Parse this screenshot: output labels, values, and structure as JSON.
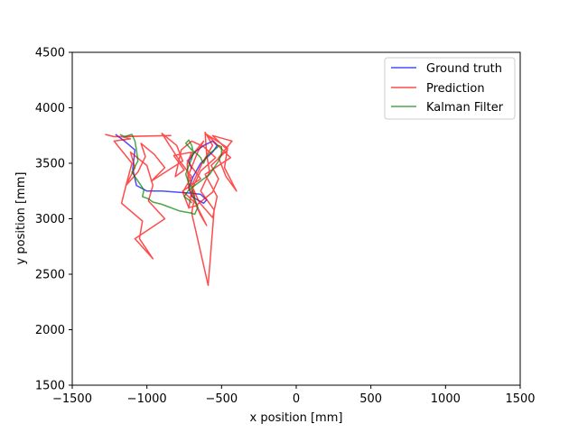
{
  "chart_data": {
    "type": "line",
    "xlabel": "x position [mm]",
    "ylabel": "y position [mm]",
    "xlim": [
      -1500,
      1500
    ],
    "ylim": [
      1500,
      4500
    ],
    "xticks": [
      -1500,
      -1000,
      -500,
      0,
      500,
      1000,
      1500
    ],
    "yticks": [
      1500,
      2000,
      2500,
      3000,
      3500,
      4000,
      4500
    ],
    "xtick_labels": [
      "−1500",
      "−1000",
      "−500",
      "0",
      "500",
      "1000",
      "1500"
    ],
    "ytick_labels": [
      "1500",
      "2000",
      "2500",
      "3000",
      "3500",
      "4000",
      "4500"
    ],
    "grid": false,
    "legend_position": "top-right",
    "series": [
      {
        "name": "Ground truth",
        "color": "#0000ff",
        "x": [
          -1210,
          -1150,
          -1080,
          -1095,
          -1070,
          -1000,
          -900,
          -800,
          -700,
          -640,
          -600,
          -620,
          -700,
          -720,
          -690,
          -640,
          -560,
          -530,
          -560,
          -620,
          -680,
          -720,
          -700
        ],
        "y": [
          3760,
          3700,
          3620,
          3450,
          3300,
          3250,
          3250,
          3240,
          3230,
          3220,
          3170,
          3140,
          3200,
          3280,
          3380,
          3500,
          3600,
          3660,
          3700,
          3660,
          3600,
          3520,
          3450
        ]
      },
      {
        "name": "Prediction",
        "color": "#ff0000",
        "x": [
          -1280,
          -1220,
          -840,
          -1170,
          -1110,
          -1220,
          -1100,
          -1140,
          -1170,
          -1030,
          -1050,
          -960,
          -1080,
          -880,
          -990,
          -960,
          -1000,
          -1110,
          -1080,
          -1140,
          -1060,
          -1010,
          -1040,
          -950,
          -880,
          -970,
          -760,
          -800,
          -900,
          -780,
          -700,
          -760,
          -720,
          -660,
          -760,
          -640,
          -730,
          -620,
          -660,
          -720,
          -680,
          -700,
          -590,
          -550,
          -640,
          -580,
          -600,
          -610,
          -560,
          -630,
          -700,
          -650,
          -560,
          -530,
          -610,
          -440,
          -600,
          -460,
          -480,
          -400,
          -470,
          -520,
          -430,
          -560,
          -460,
          -570,
          -520,
          -560,
          -670,
          -640,
          -600,
          -660,
          -720,
          -730,
          -700,
          -820,
          -750,
          -810,
          -770,
          -700,
          -620,
          -540,
          -640,
          -690,
          -710,
          -720
        ],
        "y": [
          3760,
          3740,
          3750,
          3740,
          3720,
          3700,
          3500,
          3300,
          3140,
          2980,
          2820,
          2640,
          2820,
          3000,
          3160,
          3300,
          3480,
          3600,
          3460,
          3300,
          3420,
          3560,
          3680,
          3580,
          3460,
          3340,
          3520,
          3660,
          3770,
          3520,
          3380,
          3240,
          3100,
          3120,
          3250,
          3360,
          3520,
          3700,
          3600,
          3400,
          3200,
          3050,
          2400,
          3080,
          3250,
          3420,
          3580,
          3780,
          3660,
          3500,
          3300,
          3150,
          3010,
          3200,
          3400,
          3550,
          3760,
          3640,
          3460,
          3250,
          3380,
          3550,
          3700,
          3750,
          3620,
          3480,
          3360,
          3240,
          3120,
          3030,
          2940,
          3100,
          3280,
          3500,
          3600,
          3570,
          3440,
          3380,
          3620,
          3700,
          3650,
          3550,
          3430,
          3290,
          3180,
          3090
        ]
      },
      {
        "name": "Kalman Filter",
        "color": "#008000",
        "x": [
          -1180,
          -1150,
          -1100,
          -1080,
          -1070,
          -1060,
          -1100,
          -1080,
          -1060,
          -1040,
          -1020,
          -1030,
          -990,
          -960,
          -900,
          -860,
          -820,
          -780,
          -740,
          -700,
          -680,
          -660,
          -680,
          -700,
          -720,
          -740,
          -720,
          -700,
          -690,
          -700,
          -720,
          -740,
          -700,
          -660,
          -640,
          -630,
          -620,
          -600,
          -570,
          -550,
          -530,
          -520,
          -500,
          -500,
          -520,
          -540,
          -560,
          -580,
          -600,
          -620,
          -640,
          -660,
          -680,
          -700,
          -720,
          -730,
          -740,
          -750,
          -730,
          -710,
          -700
        ],
        "y": [
          3760,
          3740,
          3760,
          3700,
          3620,
          3520,
          3420,
          3380,
          3340,
          3300,
          3260,
          3200,
          3180,
          3150,
          3130,
          3110,
          3090,
          3070,
          3060,
          3050,
          3040,
          3100,
          3180,
          3260,
          3320,
          3400,
          3480,
          3540,
          3600,
          3660,
          3710,
          3680,
          3620,
          3580,
          3550,
          3520,
          3500,
          3560,
          3600,
          3620,
          3640,
          3660,
          3650,
          3580,
          3520,
          3480,
          3440,
          3400,
          3380,
          3360,
          3340,
          3320,
          3300,
          3280,
          3260,
          3240,
          3220,
          3200,
          3180,
          3160,
          3140
        ]
      }
    ]
  }
}
